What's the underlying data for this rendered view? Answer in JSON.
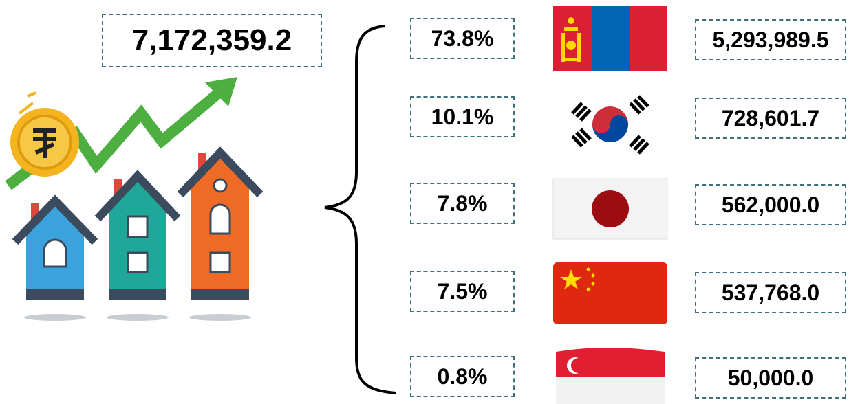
{
  "total": "7,172,359.2",
  "rows": [
    {
      "share": "73.8%",
      "amount": "5,293,989.5"
    },
    {
      "share": "10.1%",
      "amount": "728,601.7"
    },
    {
      "share": "7.8%",
      "amount": "562,000.0"
    },
    {
      "share": "7.5%",
      "amount": "537,768.0"
    },
    {
      "share": "0.8%",
      "amount": "50,000.0"
    }
  ]
}
